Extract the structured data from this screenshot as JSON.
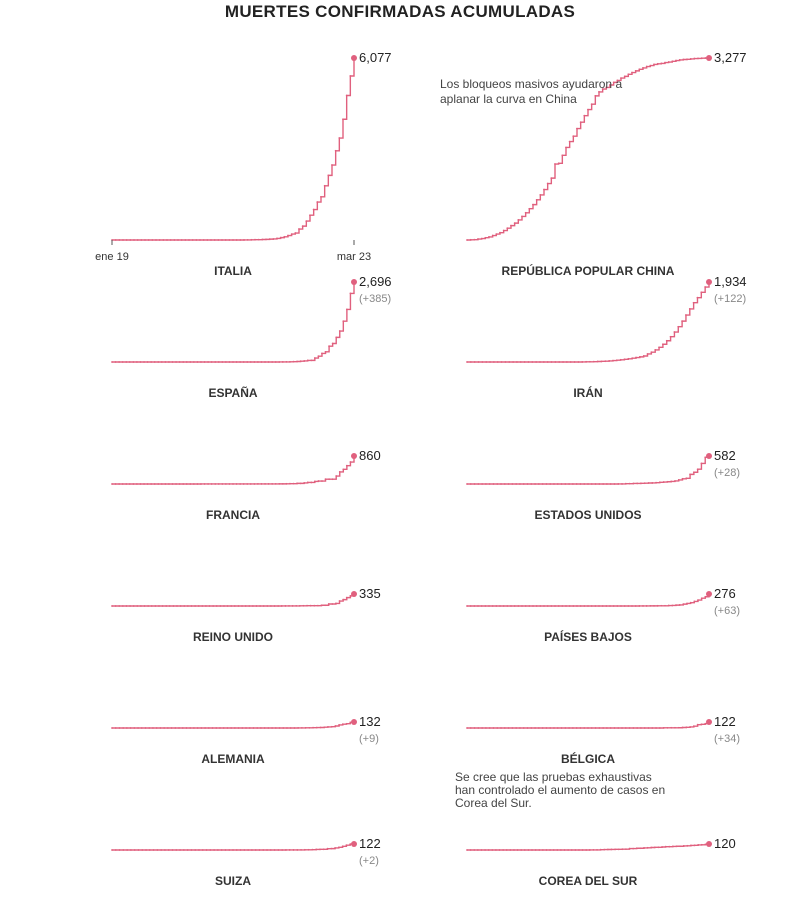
{
  "title": "MUERTES CONFIRMADAS ACUMULADAS",
  "annotations": [
    "Los bloqueos masivos ayudaron a aplanar la curva en China",
    "Se cree que las pruebas exhaustivas han controlado el aumento de casos en Corea del Sur."
  ],
  "accent_color": "#e0607e",
  "chart_data": {
    "type": "line",
    "title": "MUERTES CONFIRMADAS ACUMULADAS",
    "x_start_label": "ene 19",
    "x_end_label": "mar 23",
    "shared_y_scale": false,
    "series": [
      {
        "name": "ITALIA",
        "final_label": "6,077",
        "change_label": "",
        "values": [
          0,
          0,
          0,
          0,
          0,
          0,
          0,
          0,
          0,
          0,
          0,
          0,
          0,
          0,
          0,
          0,
          0,
          0,
          0,
          0,
          0,
          0,
          0,
          0,
          0,
          0,
          0,
          0,
          0,
          0,
          0,
          0,
          0,
          0,
          0,
          0,
          2,
          3,
          7,
          10,
          12,
          17,
          21,
          29,
          34,
          52,
          79,
          107,
          148,
          197,
          233,
          366,
          463,
          631,
          827,
          1016,
          1266,
          1441,
          1809,
          2158,
          2503,
          2978,
          3405,
          4032,
          4825,
          5476,
          6077
        ]
      },
      {
        "name": "REPÚBLICA POPULAR CHINA",
        "final_label": "3,277",
        "change_label": "",
        "values": [
          0,
          3,
          6,
          17,
          25,
          41,
          56,
          80,
          106,
          132,
          170,
          213,
          259,
          304,
          361,
          425,
          490,
          563,
          637,
          723,
          812,
          909,
          1017,
          1114,
          1368,
          1381,
          1524,
          1666,
          1772,
          1870,
          2006,
          2121,
          2239,
          2348,
          2445,
          2595,
          2666,
          2718,
          2747,
          2791,
          2838,
          2873,
          2915,
          2946,
          2984,
          3015,
          3045,
          3073,
          3099,
          3123,
          3140,
          3162,
          3173,
          3180,
          3194,
          3204,
          3218,
          3231,
          3242,
          3250,
          3253,
          3261,
          3267,
          3270,
          3274,
          3276,
          3277
        ]
      },
      {
        "name": "ESPAÑA",
        "final_label": "2,696",
        "change_label": "(+385)",
        "values": [
          0,
          0,
          0,
          0,
          0,
          0,
          0,
          0,
          0,
          0,
          0,
          0,
          0,
          0,
          0,
          0,
          0,
          0,
          0,
          0,
          0,
          0,
          0,
          0,
          0,
          0,
          0,
          0,
          0,
          0,
          0,
          0,
          0,
          0,
          0,
          0,
          0,
          0,
          0,
          0,
          0,
          0,
          0,
          0,
          0,
          0,
          0,
          1,
          2,
          3,
          5,
          10,
          17,
          28,
          35,
          54,
          55,
          133,
          195,
          289,
          342,
          533,
          623,
          830,
          1043,
          1375,
          1772,
          2311,
          2696
        ]
      },
      {
        "name": "IRÁN",
        "final_label": "1,934",
        "change_label": "(+122)",
        "values": [
          0,
          0,
          0,
          0,
          0,
          0,
          0,
          0,
          0,
          0,
          0,
          0,
          0,
          0,
          0,
          0,
          0,
          0,
          0,
          0,
          0,
          0,
          0,
          0,
          0,
          0,
          0,
          0,
          0,
          0,
          2,
          4,
          5,
          8,
          12,
          16,
          19,
          26,
          34,
          43,
          54,
          66,
          77,
          92,
          107,
          124,
          145,
          194,
          237,
          291,
          354,
          429,
          514,
          611,
          724,
          853,
          988,
          1135,
          1284,
          1433,
          1556,
          1685,
          1812,
          1934
        ]
      },
      {
        "name": "FRANCIA",
        "final_label": "860",
        "change_label": "",
        "values": [
          0,
          0,
          0,
          0,
          0,
          0,
          0,
          0,
          0,
          0,
          0,
          0,
          0,
          0,
          0,
          0,
          0,
          0,
          0,
          0,
          0,
          0,
          0,
          0,
          0,
          1,
          1,
          1,
          1,
          1,
          1,
          1,
          1,
          1,
          1,
          1,
          1,
          1,
          1,
          1,
          1,
          2,
          2,
          2,
          2,
          2,
          3,
          4,
          4,
          6,
          9,
          11,
          19,
          19,
          33,
          48,
          48,
          79,
          91,
          91,
          148,
          148,
          148,
          244,
          372,
          450,
          562,
          674,
          860
        ]
      },
      {
        "name": "ESTADOS UNIDOS",
        "final_label": "582",
        "change_label": "(+28)",
        "values": [
          0,
          0,
          0,
          0,
          0,
          0,
          0,
          0,
          0,
          0,
          0,
          0,
          0,
          0,
          0,
          0,
          0,
          0,
          0,
          0,
          0,
          0,
          0,
          0,
          0,
          0,
          0,
          0,
          0,
          0,
          0,
          0,
          0,
          0,
          0,
          0,
          0,
          0,
          0,
          0,
          1,
          1,
          6,
          7,
          11,
          12,
          14,
          17,
          21,
          22,
          28,
          36,
          40,
          47,
          54,
          63,
          85,
          108,
          118,
          200,
          244,
          307,
          427,
          554,
          582
        ]
      },
      {
        "name": "REINO UNIDO",
        "final_label": "335",
        "change_label": "",
        "values": [
          0,
          0,
          0,
          0,
          0,
          0,
          0,
          0,
          0,
          0,
          0,
          0,
          0,
          0,
          0,
          0,
          0,
          0,
          0,
          0,
          0,
          0,
          0,
          0,
          0,
          0,
          0,
          0,
          0,
          0,
          0,
          0,
          0,
          0,
          0,
          0,
          0,
          0,
          0,
          0,
          0,
          0,
          0,
          0,
          0,
          0,
          0,
          1,
          1,
          2,
          2,
          3,
          4,
          6,
          8,
          8,
          8,
          10,
          21,
          21,
          56,
          56,
          72,
          138,
          178,
          234,
          282,
          335
        ]
      },
      {
        "name": "PAÍSES BAJOS",
        "final_label": "276",
        "change_label": "(+63)",
        "values": [
          0,
          0,
          0,
          0,
          0,
          0,
          0,
          0,
          0,
          0,
          0,
          0,
          0,
          0,
          0,
          0,
          0,
          0,
          0,
          0,
          0,
          0,
          0,
          0,
          0,
          0,
          0,
          0,
          0,
          0,
          0,
          0,
          0,
          0,
          0,
          0,
          0,
          0,
          0,
          0,
          0,
          0,
          0,
          0,
          0,
          0,
          0,
          1,
          1,
          1,
          3,
          3,
          4,
          5,
          5,
          10,
          12,
          20,
          24,
          43,
          58,
          76,
          106,
          136,
          179,
          213,
          276
        ]
      },
      {
        "name": "ALEMANIA",
        "final_label": "132",
        "change_label": "(+9)",
        "values": [
          0,
          0,
          0,
          0,
          0,
          0,
          0,
          0,
          0,
          0,
          0,
          0,
          0,
          0,
          0,
          0,
          0,
          0,
          0,
          0,
          0,
          0,
          0,
          0,
          0,
          0,
          0,
          0,
          0,
          0,
          0,
          0,
          0,
          0,
          0,
          0,
          0,
          0,
          0,
          0,
          0,
          0,
          0,
          0,
          0,
          0,
          0,
          0,
          0,
          0,
          2,
          2,
          3,
          3,
          7,
          9,
          11,
          17,
          24,
          28,
          44,
          67,
          84,
          94,
          123,
          132
        ]
      },
      {
        "name": "BÉLGICA",
        "final_label": "122",
        "change_label": "(+34)",
        "values": [
          0,
          0,
          0,
          0,
          0,
          0,
          0,
          0,
          0,
          0,
          0,
          0,
          0,
          0,
          0,
          0,
          0,
          0,
          0,
          0,
          0,
          0,
          0,
          0,
          0,
          0,
          0,
          0,
          0,
          0,
          0,
          0,
          0,
          0,
          0,
          0,
          0,
          0,
          0,
          0,
          0,
          0,
          0,
          0,
          0,
          0,
          0,
          0,
          0,
          0,
          0,
          0,
          3,
          3,
          4,
          4,
          5,
          10,
          14,
          21,
          37,
          67,
          75,
          88,
          122
        ]
      },
      {
        "name": "SUIZA",
        "final_label": "122",
        "change_label": "(+2)",
        "values": [
          0,
          0,
          0,
          0,
          0,
          0,
          0,
          0,
          0,
          0,
          0,
          0,
          0,
          0,
          0,
          0,
          0,
          0,
          0,
          0,
          0,
          0,
          0,
          0,
          0,
          0,
          0,
          0,
          0,
          0,
          0,
          0,
          0,
          0,
          0,
          0,
          0,
          0,
          0,
          0,
          0,
          0,
          0,
          0,
          0,
          0,
          1,
          1,
          1,
          1,
          2,
          4,
          4,
          7,
          11,
          13,
          14,
          27,
          28,
          41,
          54,
          75,
          98,
          120,
          122
        ]
      },
      {
        "name": "COREA DEL SUR",
        "final_label": "120",
        "change_label": "",
        "values": [
          0,
          0,
          0,
          0,
          0,
          0,
          0,
          0,
          0,
          0,
          0,
          0,
          0,
          0,
          0,
          0,
          0,
          0,
          0,
          0,
          0,
          0,
          0,
          0,
          0,
          0,
          0,
          0,
          0,
          0,
          0,
          0,
          0,
          0,
          1,
          2,
          2,
          6,
          8,
          10,
          12,
          13,
          13,
          16,
          17,
          28,
          28,
          35,
          35,
          42,
          44,
          50,
          53,
          54,
          60,
          66,
          66,
          72,
          75,
          75,
          81,
          84,
          91,
          94,
          102,
          104,
          111,
          120
        ]
      }
    ]
  }
}
